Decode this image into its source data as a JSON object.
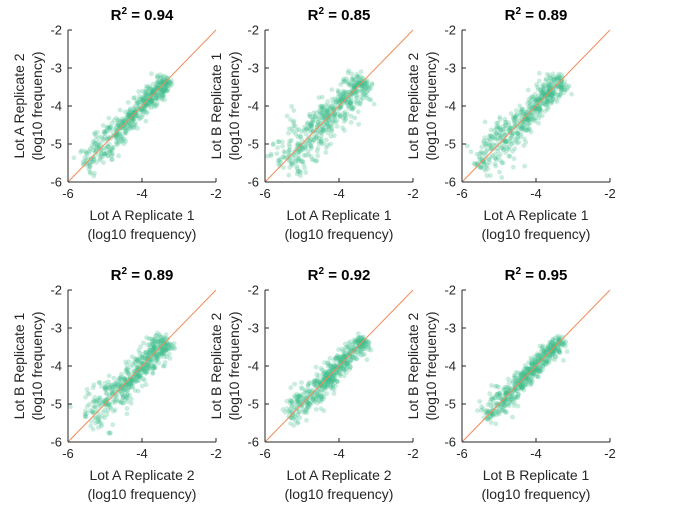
{
  "chart_data": [
    {
      "type": "scatter",
      "title_prefix": "R",
      "title_sup": "2",
      "title_value": " = 0.94",
      "xlabel": "Lot A Replicate 1",
      "ylabel": "Lot A Replicate 2",
      "label_unit": "(log10 frequency)",
      "xlim": [
        -6,
        -2
      ],
      "ylim": [
        -6,
        -2
      ],
      "xticks": [
        "-6",
        "-4",
        "-2"
      ],
      "yticks": [
        "-6",
        "-5",
        "-4",
        "-3",
        "-2"
      ],
      "point_color": "#3fbf8c",
      "reference_line_color": "#f08c5a",
      "x_range": [
        -5.6,
        -3.3
      ],
      "spread": 0.12
    },
    {
      "type": "scatter",
      "title_prefix": "R",
      "title_sup": "2",
      "title_value": " = 0.85",
      "xlabel": "Lot A Replicate 1",
      "ylabel": "Lot B Replicate 1",
      "label_unit": "(log10 frequency)",
      "xlim": [
        -6,
        -2
      ],
      "ylim": [
        -6,
        -2
      ],
      "xticks": [
        "-6",
        "-4",
        "-2"
      ],
      "yticks": [
        "-6",
        "-5",
        "-4",
        "-3",
        "-2"
      ],
      "point_color": "#3fbf8c",
      "reference_line_color": "#f08c5a",
      "x_range": [
        -5.6,
        -3.3
      ],
      "spread": 0.2
    },
    {
      "type": "scatter",
      "title_prefix": "R",
      "title_sup": "2",
      "title_value": " = 0.89",
      "xlabel": "Lot A Replicate 1",
      "ylabel": "Lot B Replicate 2",
      "label_unit": "(log10 frequency)",
      "xlim": [
        -6,
        -2
      ],
      "ylim": [
        -6,
        -2
      ],
      "xticks": [
        "-6",
        "-4",
        "-2"
      ],
      "yticks": [
        "-6",
        "-5",
        "-4",
        "-3",
        "-2"
      ],
      "point_color": "#3fbf8c",
      "reference_line_color": "#f08c5a",
      "x_range": [
        -5.6,
        -3.3
      ],
      "spread": 0.16
    },
    {
      "type": "scatter",
      "title_prefix": "R",
      "title_sup": "2",
      "title_value": " = 0.89",
      "xlabel": "Lot A Replicate 2",
      "ylabel": "Lot B Replicate 1",
      "label_unit": "(log10 frequency)",
      "xlim": [
        -6,
        -2
      ],
      "ylim": [
        -6,
        -2
      ],
      "xticks": [
        "-6",
        "-4",
        "-2"
      ],
      "yticks": [
        "-6",
        "-5",
        "-4",
        "-3",
        "-2"
      ],
      "point_color": "#3fbf8c",
      "reference_line_color": "#f08c5a",
      "x_range": [
        -5.5,
        -3.3
      ],
      "spread": 0.16
    },
    {
      "type": "scatter",
      "title_prefix": "R",
      "title_sup": "2",
      "title_value": " = 0.92",
      "xlabel": "Lot A Replicate 2",
      "ylabel": "Lot B Replicate 2",
      "label_unit": "(log10 frequency)",
      "xlim": [
        -6,
        -2
      ],
      "ylim": [
        -6,
        -2
      ],
      "xticks": [
        "-6",
        "-4",
        "-2"
      ],
      "yticks": [
        "-6",
        "-5",
        "-4",
        "-3",
        "-2"
      ],
      "point_color": "#3fbf8c",
      "reference_line_color": "#f08c5a",
      "x_range": [
        -5.4,
        -3.3
      ],
      "spread": 0.13
    },
    {
      "type": "scatter",
      "title_prefix": "R",
      "title_sup": "2",
      "title_value": " = 0.95",
      "xlabel": "Lot B Replicate 1",
      "ylabel": "Lot B Replicate 2",
      "label_unit": "(log10 frequency)",
      "xlim": [
        -6,
        -2
      ],
      "ylim": [
        -6,
        -2
      ],
      "xticks": [
        "-6",
        "-4",
        "-2"
      ],
      "yticks": [
        "-6",
        "-5",
        "-4",
        "-3",
        "-2"
      ],
      "point_color": "#3fbf8c",
      "reference_line_color": "#f08c5a",
      "x_range": [
        -5.4,
        -3.3
      ],
      "spread": 0.1
    }
  ]
}
